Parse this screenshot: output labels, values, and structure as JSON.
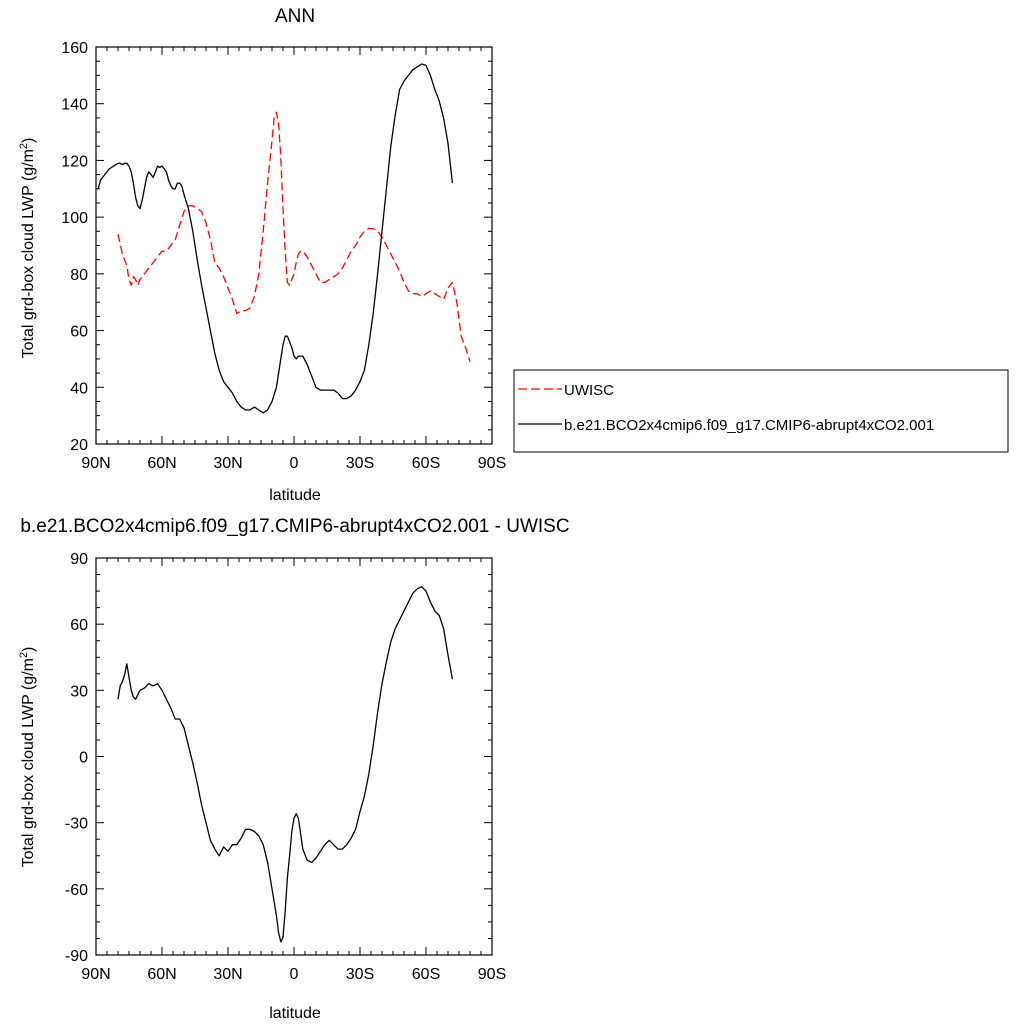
{
  "chart_data": [
    {
      "type": "line",
      "title": "ANN",
      "xlabel": "latitude",
      "ylabel": "Total grd-box cloud LWP (g/m",
      "ylabel_sup": "2",
      "ylabel_close": ")",
      "xlim": [
        90,
        -90
      ],
      "ylim": [
        20,
        160
      ],
      "xticks": [
        90,
        60,
        30,
        0,
        -30,
        -60,
        -90
      ],
      "xtick_labels": [
        "90N",
        "60N",
        "30N",
        "0",
        "30S",
        "60S",
        "90S"
      ],
      "yticks": [
        20,
        40,
        60,
        80,
        100,
        120,
        140,
        160
      ],
      "ytick_labels": [
        "20",
        "40",
        "60",
        "80",
        "100",
        "120",
        "140",
        "160"
      ],
      "legend": "right",
      "series": [
        {
          "name": "UWISC",
          "color": "#ff0000",
          "dash": "dashed",
          "x": [
            80,
            78,
            76,
            75,
            74,
            73,
            72,
            71,
            70,
            68,
            66,
            64,
            62,
            60,
            58,
            56,
            54,
            52,
            50,
            48,
            46,
            44,
            42,
            40,
            38,
            36,
            34,
            32,
            30,
            28,
            26,
            24,
            22,
            20,
            18,
            16,
            14,
            12,
            10,
            9,
            8,
            7,
            6,
            5,
            4,
            3,
            2,
            1,
            0,
            -1,
            -2,
            -3,
            -4,
            -6,
            -8,
            -10,
            -12,
            -14,
            -16,
            -18,
            -20,
            -22,
            -24,
            -26,
            -28,
            -30,
            -32,
            -34,
            -36,
            -38,
            -40,
            -42,
            -44,
            -46,
            -48,
            -50,
            -52,
            -54,
            -56,
            -58,
            -60,
            -62,
            -64,
            -66,
            -68,
            -70,
            -72,
            -74,
            -76,
            -78,
            -80
          ],
          "y": [
            94,
            87,
            83,
            78,
            76,
            79,
            78,
            76,
            78,
            80,
            82,
            84,
            86,
            88,
            88,
            90,
            92,
            97,
            102,
            104,
            104,
            103,
            102,
            98,
            92,
            84,
            82,
            79,
            75,
            71,
            66,
            67,
            67,
            68,
            72,
            80,
            95,
            112,
            127,
            135,
            137,
            133,
            121,
            103,
            88,
            77,
            76,
            78,
            80,
            84,
            87,
            88,
            88,
            86,
            83,
            80,
            77,
            77,
            78,
            79,
            80,
            82,
            85,
            88,
            90,
            93,
            95,
            96,
            96,
            95,
            93,
            90,
            87,
            84,
            81,
            77,
            74,
            73,
            73,
            72,
            73,
            74,
            73,
            72,
            71,
            75,
            77,
            70,
            58,
            54,
            49
          ]
        },
        {
          "name": "b.e21.BCO2x4cmip6.f09_g17.CMIP6-abrupt4xCO2.001",
          "color": "#000000",
          "dash": "solid",
          "x": [
            89,
            88,
            87,
            86,
            85,
            84,
            83,
            82,
            81,
            80,
            79,
            78,
            77,
            76,
            75,
            74,
            73,
            72,
            71,
            70,
            69,
            68,
            67,
            66,
            65,
            64,
            63,
            62,
            61,
            60,
            59,
            58,
            57,
            56,
            55,
            54,
            53,
            52,
            51,
            50,
            48,
            46,
            44,
            42,
            40,
            38,
            36,
            34,
            32,
            30,
            28,
            26,
            24,
            22,
            20,
            18,
            16,
            14,
            12,
            10,
            8,
            7,
            6,
            5,
            4,
            3,
            2,
            1,
            0,
            -1,
            -2,
            -3,
            -4,
            -6,
            -8,
            -10,
            -12,
            -14,
            -16,
            -18,
            -20,
            -22,
            -24,
            -26,
            -28,
            -30,
            -32,
            -34,
            -36,
            -38,
            -40,
            -42,
            -44,
            -46,
            -48,
            -50,
            -52,
            -54,
            -56,
            -58,
            -60,
            -62,
            -64,
            -66,
            -68,
            -70,
            -72
          ],
          "y": [
            110,
            113,
            114,
            115,
            116,
            117,
            117.5,
            118,
            118.5,
            119,
            119,
            118.5,
            119,
            119,
            118,
            116,
            112,
            107,
            104,
            103,
            106,
            110,
            114,
            116,
            115,
            114,
            116,
            118,
            117.5,
            118,
            117,
            116,
            113,
            111,
            110,
            110,
            112,
            112,
            111,
            108,
            103,
            95,
            85,
            76,
            68,
            60,
            52,
            46,
            42,
            40,
            38,
            35,
            33,
            32,
            32,
            33,
            32,
            31,
            32,
            35,
            40,
            45,
            50,
            55,
            58,
            58,
            56,
            54,
            51,
            50,
            51,
            51,
            51,
            48,
            44,
            40,
            39,
            39,
            39,
            39,
            38,
            36,
            36,
            37,
            39,
            42,
            46,
            55,
            66,
            80,
            95,
            110,
            125,
            136,
            145,
            148,
            150,
            152,
            153,
            154,
            153.5,
            150,
            145,
            141,
            135,
            126,
            112
          ]
        }
      ]
    },
    {
      "type": "line",
      "title": "b.e21.BCO2x4cmip6.f09_g17.CMIP6-abrupt4xCO2.001 - UWISC",
      "xlabel": "latitude",
      "ylabel": "Total grd-box cloud LWP (g/m",
      "ylabel_sup": "2",
      "ylabel_close": ")",
      "xlim": [
        90,
        -90
      ],
      "ylim": [
        -90,
        90
      ],
      "xticks": [
        90,
        60,
        30,
        0,
        -30,
        -60,
        -90
      ],
      "xtick_labels": [
        "90N",
        "60N",
        "30N",
        "0",
        "30S",
        "60S",
        "90S"
      ],
      "yticks": [
        -90,
        -60,
        -30,
        0,
        30,
        60,
        90
      ],
      "ytick_labels": [
        "-90",
        "-60",
        "-30",
        "0",
        "30",
        "60",
        "90"
      ],
      "series": [
        {
          "color": "#000000",
          "dash": "solid",
          "x": [
            80,
            79,
            78,
            77,
            76,
            75,
            74,
            73,
            72,
            71,
            70,
            68,
            66,
            64,
            62,
            60,
            58,
            56,
            54,
            52,
            50,
            48,
            46,
            44,
            42,
            40,
            38,
            36,
            34,
            32,
            30,
            28,
            26,
            24,
            22,
            20,
            18,
            16,
            14,
            12,
            10,
            8,
            7,
            6,
            5,
            4,
            3,
            2,
            1,
            0,
            -1,
            -2,
            -3,
            -4,
            -6,
            -8,
            -10,
            -12,
            -14,
            -16,
            -18,
            -20,
            -22,
            -24,
            -26,
            -28,
            -30,
            -32,
            -34,
            -36,
            -38,
            -40,
            -42,
            -44,
            -46,
            -48,
            -50,
            -52,
            -54,
            -56,
            -58,
            -60,
            -62,
            -64,
            -66,
            -68,
            -70,
            -72
          ],
          "y": [
            26,
            32,
            34,
            37,
            42,
            36,
            30,
            27,
            26,
            28,
            30,
            31,
            33,
            32,
            33,
            30,
            26,
            22,
            17,
            17,
            13,
            5,
            -3,
            -12,
            -22,
            -30,
            -38,
            -42,
            -45,
            -41,
            -43,
            -40,
            -40,
            -37,
            -33,
            -33,
            -34,
            -36,
            -40,
            -48,
            -60,
            -72,
            -80,
            -84,
            -82,
            -70,
            -55,
            -45,
            -34,
            -28,
            -26,
            -28,
            -35,
            -42,
            -47,
            -48,
            -46,
            -43,
            -40,
            -38,
            -40,
            -42,
            -42,
            -40,
            -37,
            -33,
            -25,
            -18,
            -8,
            5,
            20,
            33,
            43,
            52,
            58,
            62,
            66,
            70,
            74,
            76,
            77,
            75,
            70,
            66,
            64,
            58,
            46,
            35
          ]
        }
      ]
    }
  ]
}
